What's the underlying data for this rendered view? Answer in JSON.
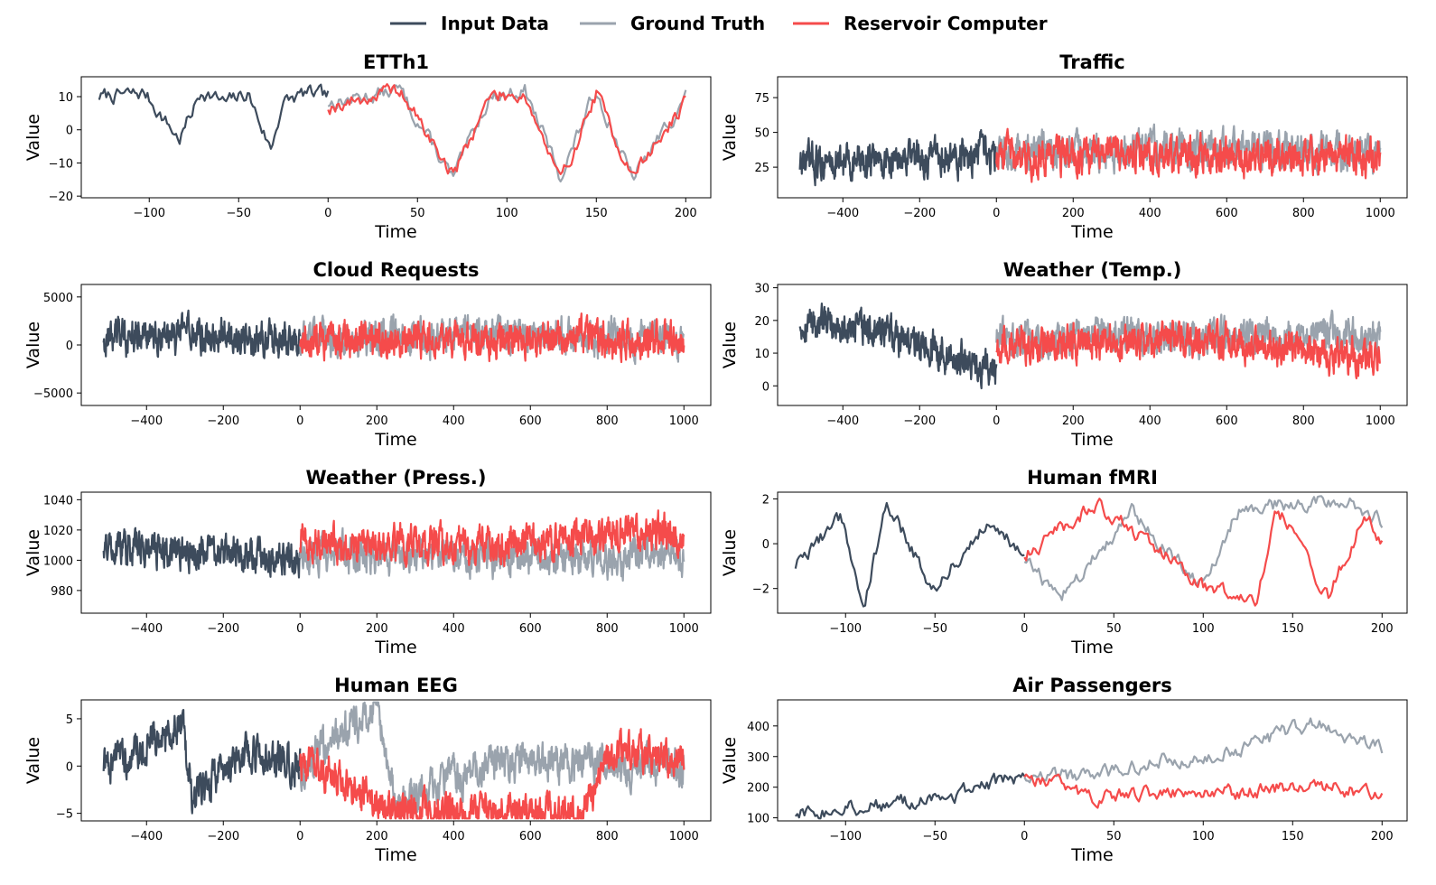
{
  "colors": {
    "input": "#3d4b5c",
    "truth": "#9aa3ad",
    "rc": "#f54b4b"
  },
  "legend": [
    {
      "key": "input",
      "label": "Input Data"
    },
    {
      "key": "truth",
      "label": "Ground Truth"
    },
    {
      "key": "rc",
      "label": "Reservoir Computer"
    }
  ],
  "chart_data": [
    {
      "type": "line",
      "title": "ETTh1",
      "xlabel": "Time",
      "ylabel": "Value",
      "xlim": [
        -138,
        214
      ],
      "ylim": [
        -20.5,
        16
      ],
      "xticks": [
        -100,
        -50,
        0,
        50,
        100,
        150,
        200
      ],
      "yticks": [
        -20,
        -10,
        0,
        10
      ],
      "input_range": [
        -128,
        0
      ],
      "forecast_range": [
        0,
        200
      ],
      "input_kf": [
        [
          0,
          10
        ],
        [
          0.2,
          11
        ],
        [
          0.35,
          -3
        ],
        [
          0.45,
          12
        ],
        [
          0.55,
          8
        ],
        [
          0.65,
          11
        ],
        [
          0.75,
          -6
        ],
        [
          0.8,
          8
        ],
        [
          0.9,
          11
        ],
        [
          1,
          10
        ]
      ],
      "truth_kf": [
        [
          0,
          8
        ],
        [
          0.2,
          12
        ],
        [
          0.35,
          -15
        ],
        [
          0.45,
          10
        ],
        [
          0.55,
          12
        ],
        [
          0.65,
          -14
        ],
        [
          0.75,
          12
        ],
        [
          0.85,
          -15
        ],
        [
          1,
          10
        ]
      ],
      "rc_kf": [
        [
          0,
          7
        ],
        [
          0.2,
          12
        ],
        [
          0.35,
          -14
        ],
        [
          0.45,
          10
        ],
        [
          0.55,
          11
        ],
        [
          0.65,
          -16
        ],
        [
          0.75,
          11
        ],
        [
          0.85,
          -14
        ],
        [
          1,
          8
        ]
      ]
    },
    {
      "type": "line",
      "title": "Traffic",
      "xlabel": "Time",
      "ylabel": "Value",
      "xlim": [
        -570,
        1070
      ],
      "ylim": [
        3,
        90
      ],
      "xticks": [
        -400,
        -200,
        0,
        200,
        400,
        600,
        800,
        1000
      ],
      "yticks": [
        25,
        50,
        75
      ],
      "input_range": [
        -512,
        0
      ],
      "forecast_range": [
        0,
        1000
      ],
      "input_kf": [
        [
          0,
          28
        ],
        [
          0.5,
          30
        ],
        [
          1,
          32
        ]
      ],
      "truth_kf": [
        [
          0,
          35
        ],
        [
          0.5,
          38
        ],
        [
          1,
          35
        ]
      ],
      "rc_kf": [
        [
          0,
          32
        ],
        [
          0.5,
          33
        ],
        [
          1,
          32
        ]
      ]
    },
    {
      "type": "line",
      "title": "Cloud Requests",
      "xlabel": "Time",
      "ylabel": "Value",
      "xlim": [
        -570,
        1070
      ],
      "ylim": [
        -6300,
        6300
      ],
      "xticks": [
        -400,
        -200,
        0,
        200,
        400,
        600,
        800,
        1000
      ],
      "yticks": [
        -5000,
        0,
        5000
      ],
      "input_range": [
        -512,
        0
      ],
      "forecast_range": [
        0,
        1000
      ],
      "input_kf": [
        [
          0,
          900
        ],
        [
          0.5,
          1000
        ],
        [
          1,
          300
        ]
      ],
      "truth_kf": [
        [
          0,
          800
        ],
        [
          0.5,
          1000
        ],
        [
          1,
          800
        ]
      ],
      "rc_kf": [
        [
          0,
          500
        ],
        [
          0.5,
          600
        ],
        [
          1,
          500
        ]
      ]
    },
    {
      "type": "line",
      "title": "Weather (Temp.)",
      "xlabel": "Time",
      "ylabel": "Value",
      "xlim": [
        -570,
        1070
      ],
      "ylim": [
        -6,
        31
      ],
      "xticks": [
        -400,
        -200,
        0,
        200,
        400,
        600,
        800,
        1000
      ],
      "yticks": [
        0,
        10,
        20,
        30
      ],
      "input_range": [
        -512,
        0
      ],
      "forecast_range": [
        0,
        1000
      ],
      "input_kf": [
        [
          0,
          20
        ],
        [
          0.5,
          15
        ],
        [
          1,
          5
        ]
      ],
      "truth_kf": [
        [
          0,
          15
        ],
        [
          0.5,
          15
        ],
        [
          1,
          15
        ]
      ],
      "rc_kf": [
        [
          0,
          12
        ],
        [
          0.5,
          14
        ],
        [
          1,
          8
        ]
      ]
    },
    {
      "type": "line",
      "title": "Weather (Press.)",
      "xlabel": "Time",
      "ylabel": "Value",
      "xlim": [
        -570,
        1070
      ],
      "ylim": [
        965,
        1045
      ],
      "xticks": [
        -400,
        -200,
        0,
        200,
        400,
        600,
        800,
        1000
      ],
      "yticks": [
        980,
        1000,
        1020,
        1040
      ],
      "input_range": [
        -512,
        0
      ],
      "forecast_range": [
        0,
        1000
      ],
      "input_kf": [
        [
          0,
          1010
        ],
        [
          0.5,
          1005
        ],
        [
          1,
          1000
        ]
      ],
      "truth_kf": [
        [
          0,
          1005
        ],
        [
          0.5,
          1002
        ],
        [
          1,
          1003
        ]
      ],
      "rc_kf": [
        [
          0,
          1012
        ],
        [
          0.5,
          1010
        ],
        [
          1,
          1020
        ]
      ]
    },
    {
      "type": "line",
      "title": "Human fMRI",
      "xlabel": "Time",
      "ylabel": "Value",
      "xlim": [
        -138,
        214
      ],
      "ylim": [
        -3.1,
        2.3
      ],
      "xticks": [
        -100,
        -50,
        0,
        50,
        100,
        150,
        200
      ],
      "yticks": [
        -2,
        0,
        2
      ],
      "input_range": [
        -128,
        0
      ],
      "forecast_range": [
        0,
        200
      ],
      "input_kf": [
        [
          0,
          -1
        ],
        [
          0.2,
          1.2
        ],
        [
          0.3,
          -2.8
        ],
        [
          0.4,
          1.9
        ],
        [
          0.6,
          -2
        ],
        [
          0.85,
          1.1
        ],
        [
          1,
          -0.5
        ]
      ],
      "truth_kf": [
        [
          0,
          -0.7
        ],
        [
          0.1,
          -2.5
        ],
        [
          0.3,
          1.5
        ],
        [
          0.5,
          -2
        ],
        [
          0.6,
          1.6
        ],
        [
          0.9,
          2
        ],
        [
          1,
          1
        ]
      ],
      "rc_kf": [
        [
          0,
          -0.5
        ],
        [
          0.2,
          1.8
        ],
        [
          0.5,
          -1.8
        ],
        [
          0.65,
          -2.9
        ],
        [
          0.7,
          1.9
        ],
        [
          0.85,
          -2.4
        ],
        [
          0.95,
          1.3
        ],
        [
          1,
          0
        ]
      ]
    },
    {
      "type": "line",
      "title": "Human EEG",
      "xlabel": "Time",
      "ylabel": "Value",
      "xlim": [
        -570,
        1070
      ],
      "ylim": [
        -5.8,
        7
      ],
      "xticks": [
        -400,
        -200,
        0,
        200,
        400,
        600,
        800,
        1000
      ],
      "yticks": [
        -5,
        0,
        5
      ],
      "input_range": [
        -512,
        0
      ],
      "forecast_range": [
        0,
        1000
      ],
      "input_kf": [
        [
          0,
          0
        ],
        [
          0.4,
          4
        ],
        [
          0.45,
          -3.5
        ],
        [
          0.7,
          1.5
        ],
        [
          1,
          0
        ]
      ],
      "truth_kf": [
        [
          0,
          0
        ],
        [
          0.2,
          6.5
        ],
        [
          0.25,
          -4
        ],
        [
          0.5,
          0.5
        ],
        [
          1,
          0
        ]
      ],
      "rc_kf": [
        [
          0,
          0.5
        ],
        [
          0.25,
          -4.5
        ],
        [
          0.74,
          -5
        ],
        [
          0.8,
          1.5
        ],
        [
          1,
          1
        ]
      ]
    },
    {
      "type": "line",
      "title": "Air Passengers",
      "xlabel": "Time",
      "ylabel": "Value",
      "xlim": [
        -138,
        214
      ],
      "ylim": [
        90,
        485
      ],
      "xticks": [
        -100,
        -50,
        0,
        50,
        100,
        150,
        200
      ],
      "yticks": [
        100,
        200,
        300,
        400
      ],
      "input_range": [
        -128,
        0
      ],
      "forecast_range": [
        0,
        200
      ],
      "input_kf": [
        [
          0,
          112
        ],
        [
          0.25,
          135
        ],
        [
          0.5,
          150
        ],
        [
          0.75,
          185
        ],
        [
          1,
          240
        ]
      ],
      "truth_kf": [
        [
          0,
          240
        ],
        [
          0.2,
          235
        ],
        [
          0.4,
          290
        ],
        [
          0.6,
          320
        ],
        [
          0.8,
          410
        ],
        [
          1,
          320
        ]
      ],
      "rc_kf": [
        [
          0,
          240
        ],
        [
          0.2,
          170
        ],
        [
          0.4,
          190
        ],
        [
          0.6,
          180
        ],
        [
          0.8,
          210
        ],
        [
          1,
          170
        ]
      ]
    }
  ]
}
